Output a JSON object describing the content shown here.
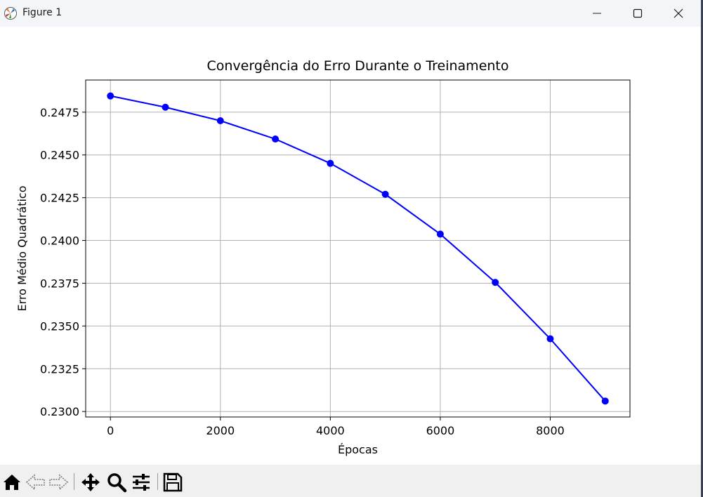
{
  "window": {
    "title": "Figure 1",
    "app_icon": "matplotlib-icon",
    "controls": [
      "minimize-icon",
      "maximize-icon",
      "close-icon"
    ]
  },
  "toolbar": {
    "buttons": [
      "home-icon",
      "back-arrow-icon",
      "forward-arrow-icon",
      "pan-move-icon",
      "zoom-magnifier-icon",
      "configure-subplots-icon",
      "save-floppy-icon"
    ]
  },
  "chart_data": {
    "type": "line",
    "title": "Convergência do Erro Durante o Treinamento",
    "xlabel": "Épocas",
    "ylabel": "Erro Médio Quadrático",
    "x": [
      0,
      1000,
      2000,
      3000,
      4000,
      5000,
      6000,
      7000,
      8000,
      9000
    ],
    "series": [
      {
        "values": [
          0.24845,
          0.24779,
          0.247,
          0.24593,
          0.24451,
          0.2427,
          0.24037,
          0.23755,
          0.23425,
          0.23061
        ],
        "color": "#0000ff",
        "marker": "circle"
      }
    ],
    "xlim": [
      -450,
      9450
    ],
    "ylim": [
      0.22968,
      0.24938
    ],
    "xticks": [
      0,
      2000,
      4000,
      6000,
      8000
    ],
    "xtick_labels": [
      "0",
      "2000",
      "4000",
      "6000",
      "8000"
    ],
    "yticks": [
      0.23,
      0.2325,
      0.235,
      0.2375,
      0.24,
      0.2425,
      0.245,
      0.2475
    ],
    "ytick_labels": [
      "0.2300",
      "0.2325",
      "0.2350",
      "0.2375",
      "0.2400",
      "0.2425",
      "0.2450",
      "0.2475"
    ],
    "grid": true
  }
}
